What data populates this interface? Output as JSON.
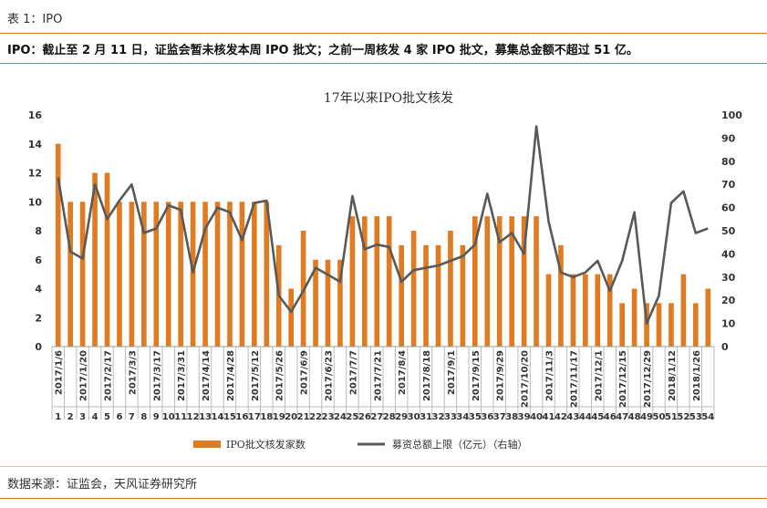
{
  "caption": "表 1：IPO",
  "headline": "IPO：截止至 2 月 11 日，证监会暂未核发本周 IPO 批文；之前一周核发 4 家 IPO 批文，募集总金额不超过 51 亿。",
  "source": "数据来源：证监会，天风证券研究所",
  "colors": {
    "bar": "#e07b22",
    "line": "#595959",
    "rule": "#c7782c"
  },
  "chart_data": {
    "type": "bar+line",
    "title": "17年以来IPO批文核发",
    "x": [
      1,
      2,
      3,
      4,
      5,
      6,
      7,
      8,
      9,
      10,
      11,
      12,
      13,
      14,
      15,
      16,
      17,
      18,
      19,
      20,
      21,
      22,
      23,
      24,
      25,
      26,
      27,
      28,
      29,
      30,
      31,
      32,
      33,
      34,
      35,
      36,
      37,
      38,
      39,
      40,
      41,
      42,
      43,
      44,
      45,
      46,
      47,
      48,
      49,
      50,
      51,
      52,
      53,
      54
    ],
    "date_labels": [
      "2017/1/6",
      "2017/1/20",
      "2017/2/17",
      "2017/3/3",
      "2017/3/17",
      "2017/3/31",
      "2017/4/14",
      "2017/4/28",
      "2017/5/12",
      "2017/5/26",
      "2017/6/9",
      "2017/6/23",
      "2017/7/7",
      "2017/7/21",
      "2017/8/4",
      "2017/8/18",
      "2017/9/1",
      "2017/9/15",
      "2017/9/29",
      "2017/10/20",
      "2017/11/3",
      "2017/11/17",
      "2017/12/1",
      "2017/12/15",
      "2017/12/29",
      "2018/1/12",
      "2018/1/26"
    ],
    "date_positions": [
      1,
      3,
      5,
      7,
      9,
      11,
      13,
      15,
      17,
      19,
      21,
      23,
      25,
      27,
      29,
      31,
      33,
      35,
      37,
      39,
      41,
      43,
      45,
      47,
      49,
      51,
      53
    ],
    "y_left_lim": [
      0,
      16
    ],
    "y_left_ticks": [
      0,
      2,
      4,
      6,
      8,
      10,
      12,
      14,
      16
    ],
    "y_right_lim": [
      0,
      100
    ],
    "y_right_ticks": [
      0,
      10,
      20,
      30,
      40,
      50,
      60,
      70,
      80,
      90,
      100
    ],
    "series": [
      {
        "name": "IPO批文核发家数",
        "type": "bar",
        "axis": "left",
        "values": [
          14,
          10,
          10,
          12,
          12,
          10,
          10,
          10,
          10,
          10,
          10,
          10,
          10,
          10,
          10,
          10,
          10,
          10,
          7,
          4,
          8,
          6,
          6,
          6,
          9,
          9,
          9,
          9,
          7,
          8,
          7,
          7,
          8,
          7,
          9,
          9,
          9,
          9,
          9,
          9,
          5,
          7,
          5,
          5,
          5,
          5,
          3,
          4,
          3,
          3,
          3,
          5,
          3,
          4
        ]
      },
      {
        "name": "募资总额上限（亿元）（右轴）",
        "type": "line",
        "axis": "right",
        "values": [
          73,
          41,
          38,
          70,
          55,
          63,
          70,
          49,
          51,
          61,
          59,
          32,
          51,
          60,
          58,
          46,
          62,
          63,
          22,
          15,
          24,
          34,
          31,
          28,
          65,
          42,
          44,
          43,
          28,
          33,
          34,
          35,
          37,
          39,
          44,
          66,
          45,
          49,
          40,
          95,
          54,
          32,
          30,
          32,
          37,
          24,
          37,
          58,
          10,
          22,
          62,
          67,
          49,
          51
        ]
      }
    ],
    "legend_position": "bottom"
  }
}
